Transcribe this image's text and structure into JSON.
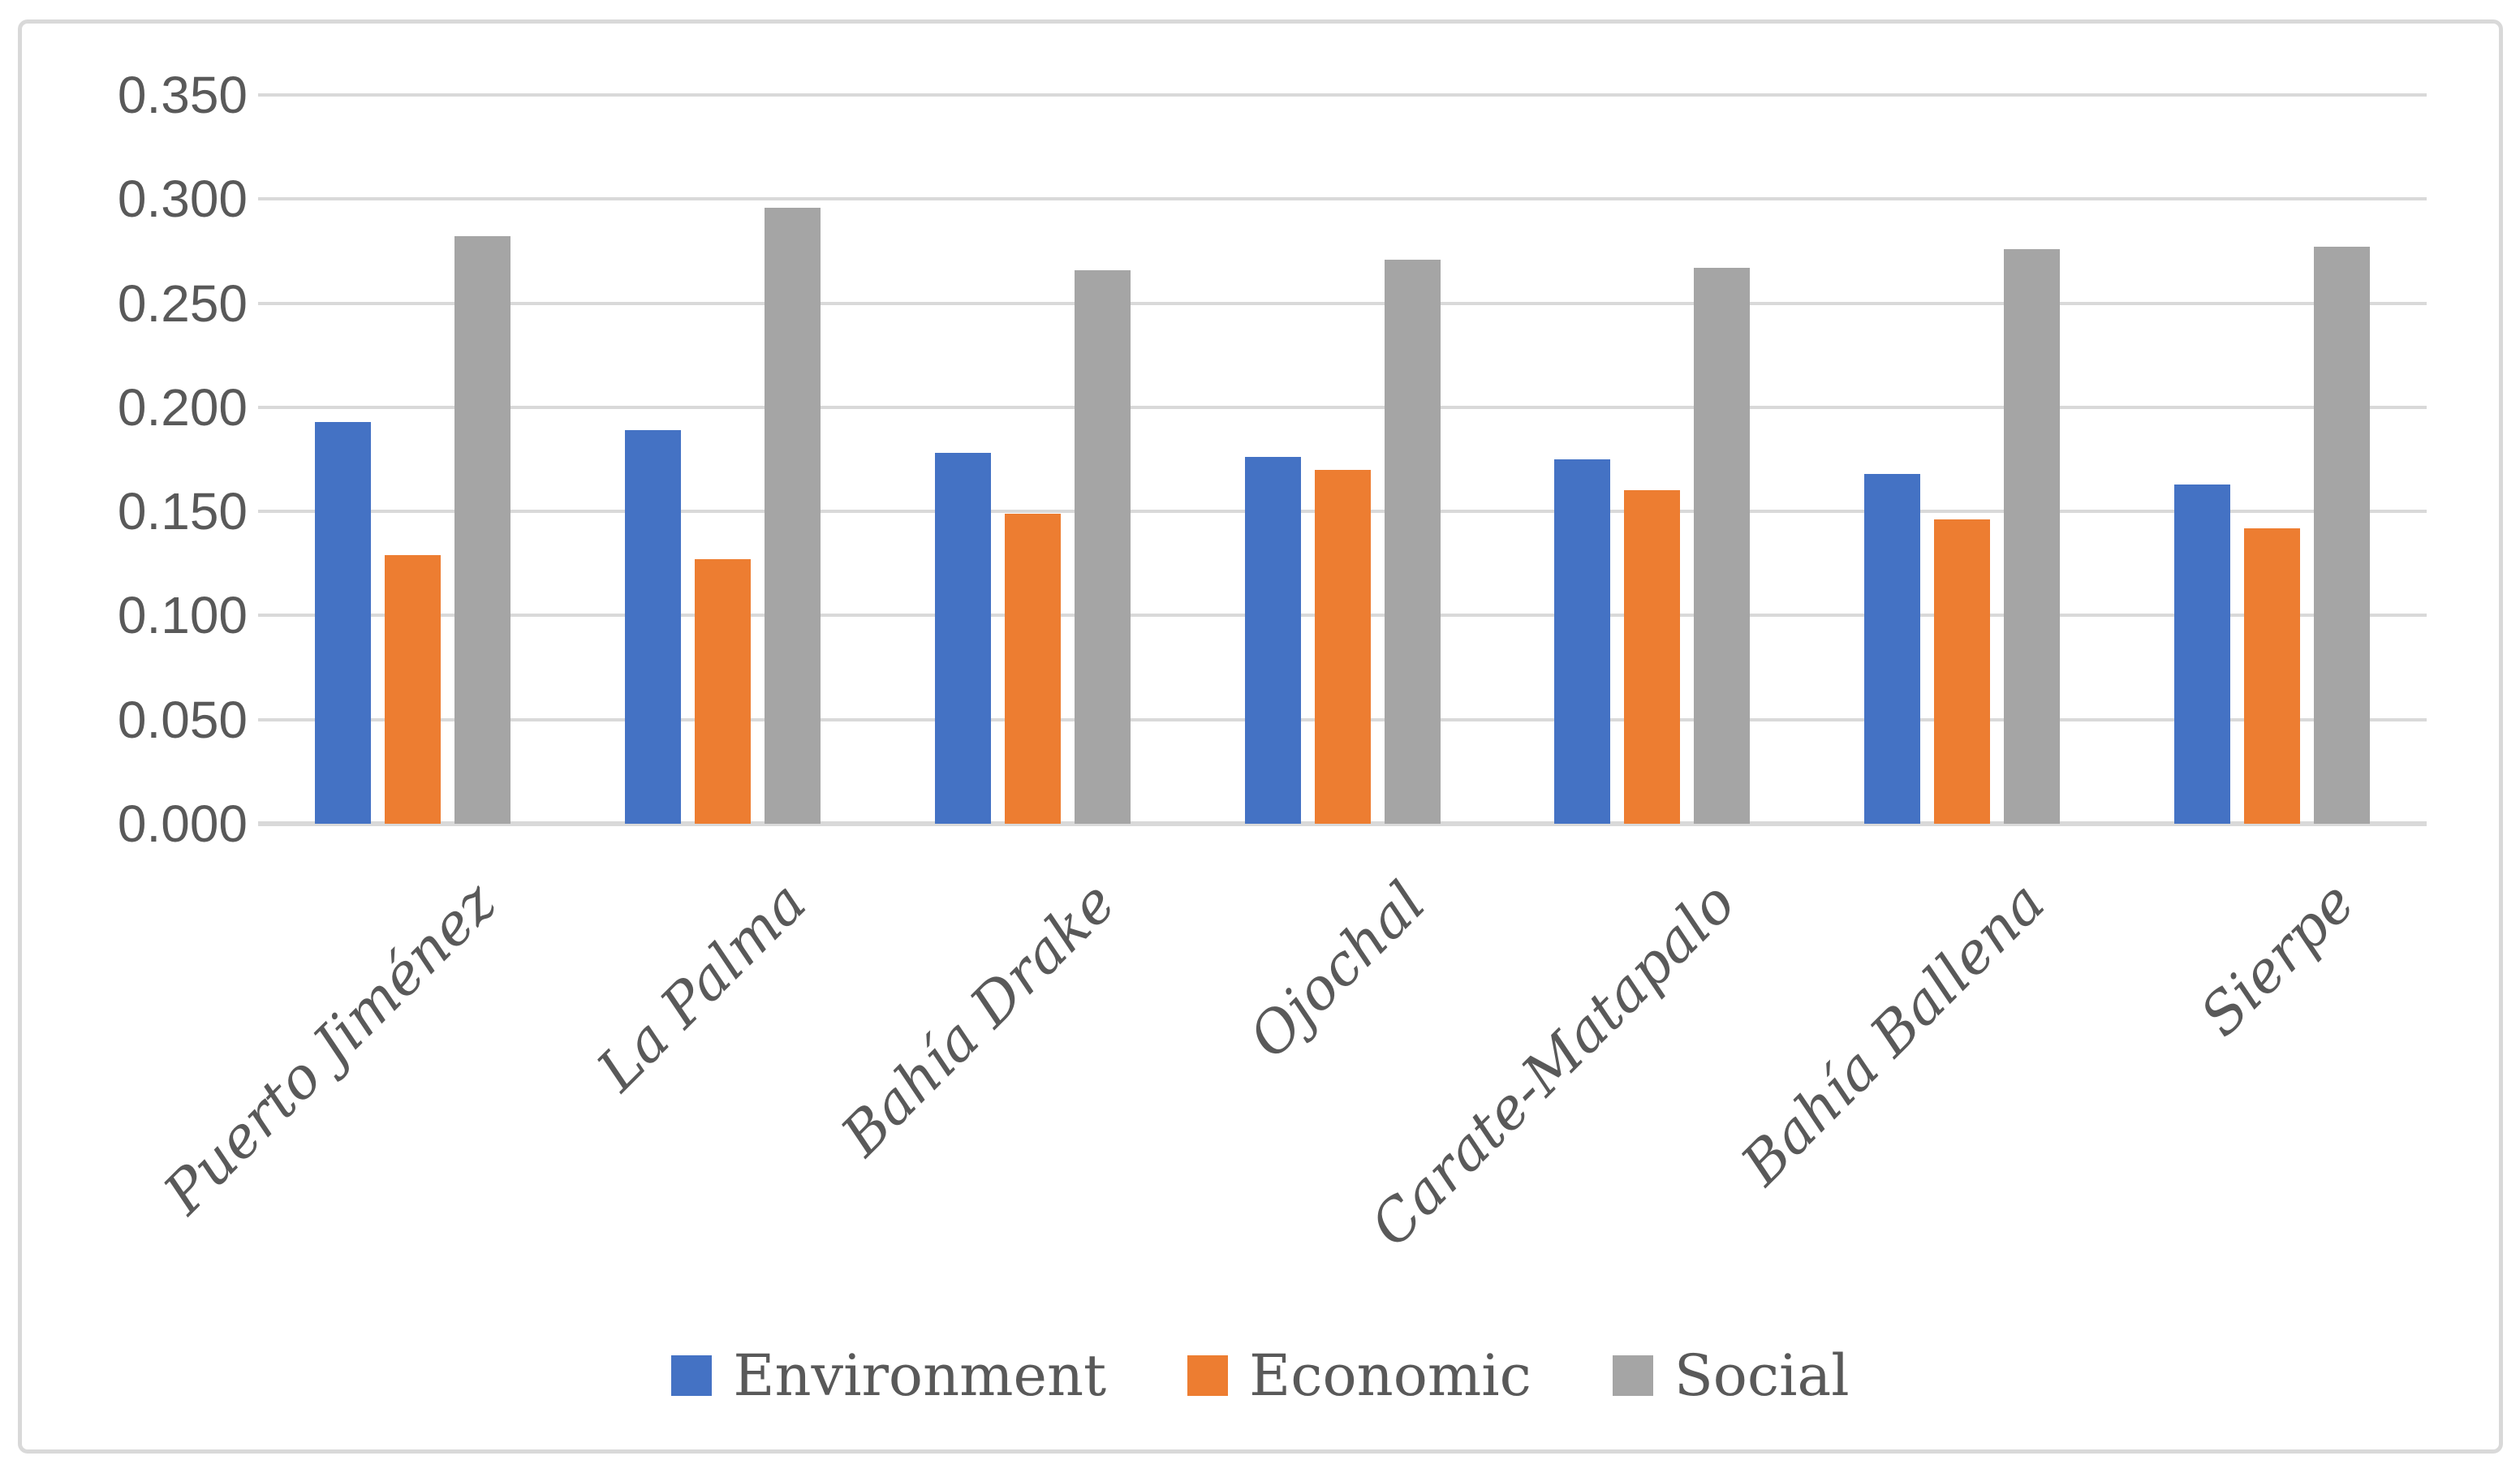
{
  "chart_data": {
    "type": "bar",
    "title": "",
    "categories": [
      "Puerto Jiménez",
      "La Palma",
      "Bahía Drake",
      "Ojochal",
      "Carate-Matapalo",
      "Bahía Ballena",
      "Sierpe"
    ],
    "series": [
      {
        "name": "Environment",
        "color": "#4472C4",
        "values": [
          0.193,
          0.189,
          0.178,
          0.176,
          0.175,
          0.168,
          0.163
        ]
      },
      {
        "name": "Economic",
        "color": "#ED7D31",
        "values": [
          0.129,
          0.127,
          0.149,
          0.17,
          0.16,
          0.146,
          0.142
        ]
      },
      {
        "name": "Social",
        "color": "#A5A5A5",
        "values": [
          0.282,
          0.296,
          0.266,
          0.271,
          0.267,
          0.276,
          0.277
        ]
      }
    ],
    "xlabel": "",
    "ylabel": "",
    "ylim": [
      0,
      0.35
    ],
    "y_tick_step": 0.05,
    "y_tick_labels": [
      "0.000",
      "0.050",
      "0.100",
      "0.150",
      "0.200",
      "0.250",
      "0.300",
      "0.350"
    ],
    "grid": "horizontal",
    "legend_position": "bottom"
  },
  "colors": {
    "background": "#FFFFFF",
    "frame_border": "#D9D9D9",
    "gridline": "#D9D9D9",
    "axis_text": "#595959"
  }
}
